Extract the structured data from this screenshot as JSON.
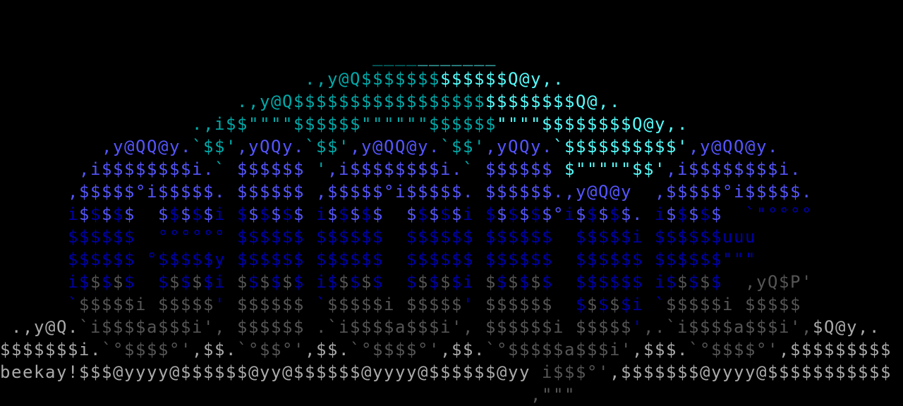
{
  "palette": {
    "c": "#00aaaa",
    "C": "#55ffff",
    "B": "#5555ff",
    "b": "#0000aa",
    "g": "#555555",
    "G": "#aaaaaa",
    "W": "#ffffff"
  },
  "signature": "beekay!",
  "rows": [
    {
      "text": "",
      "mask": ""
    },
    {
      "text": "",
      "mask": ""
    },
    {
      "text": "                                 ___________",
      "mask": "                                 ccccCCCCCCC"
    },
    {
      "text": "                           .,y@Q$$$$$$$$$$$$$Q@y,.",
      "mask": "                           ccccccccccccCCCCCCCCCCC"
    },
    {
      "text": "                     .,y@Q$$$$$$$$$$$$$$$$$$$$$$$$$Q@,.",
      "mask": "                     ccccccccccccccccccccccCCCCCCCCCCCC"
    },
    {
      "text": "                 .,i$$\"\"\"\"$$$$$$\"\"\"\"\"\"$$$$$$\"\"\"\"$$$$$$$$Q@y,.",
      "mask": "                 cccccccccccccccccccccccccccCCCCCCCCCCCCCCCCC"
    },
    {
      "text": "         ,y@QQ@y.`$$',yQQy.`$$',y@QQ@y.`$$',yQQy.`$$$$$$$$$$',y@QQ@y.",
      "mask": "         BBBBBBBBccccBBBBBBccccBBBBBBBBccccBBBBBBCCCCCCCCCCCCBBBBBBBB"
    },
    {
      "text": "       ,i$$$$$$$$i.` $$$$$$ ',i$$$$$$$$i.` $$$$$$ $\"\"\"\"\"$$',i$$$$$$$$i.",
      "mask": "       BBBBBBBBBBBBc BBBBBB cBBBBBBBBBBBBc BBBBBB CCCCCCCCCBBBBBBBBBBBB"
    },
    {
      "text": "      ,$$$$$°i$$$$$. $$$$$$ ,$$$$$°i$$$$$. $$$$$$.,y@Q@y  ,$$$$$°i$$$$$.",
      "mask": "      BBBBBBBBBBBBBB BBBBBB BBBBBBBBBBBBBB BBBBBBBBBBBBB  BBBBBBBBBBBBBB"
    },
    {
      "text": "      i$$$$$  $$$$$i $$$$$$ i$$$$$  $$$$$i $$$$$$°i$$$$$. i$$$$$  `\"°°°°",
      "mask": "      bBbBbB  BbBbBb bBbBbB bBbBbB  BbBbBb bBbBbBBbBbBbBB bBbBbB  bbbbbb"
    },
    {
      "text": "      $$$$$$  °°°°°° $$$$$$ $$$$$$  $$$$$$ $$$$$$  $$$$$i $$$$$$uuu",
      "mask": "      bbbbbb  bbbbbb bbbbbb bbbbbb  bbbbbb bbbbbb  bbbbbb bbbbbbbbb"
    },
    {
      "text": "      $$$$$$ °$$$$$y $$$$$$ $$$$$$  $$$$$$ $$$$$$  $$$$$$ $$$$$$\"\"\"",
      "mask": "      bbbbbb bbbbbbb bbbbbb bbbbbb  bbbbbb bbbbbb  bbbbbb bbbbbbbbb"
    },
    {
      "text": "      i$$$$$  $$$$$i $$$$$$ i$$$$$  $$$$$i $$$$$$  $$$$$$ i$$$$$  ,yQ$P'",
      "mask": "      bbgbgb  bgbgbb gbgbgb bbgbgb  bgbgbb gbgbgb  bbbbbb bbgbgb  gggggg"
    },
    {
      "text": "      `$$$$$i $$$$$' $$$$$$ `$$$$$i $$$$$' $$$$$$  $$$$$i `$$$$$i $$$$$",
      "mask": "      bgggggg gggggb gggggg bgggggg gggggb gggggg  bgbgbb bgggggg ggggg"
    },
    {
      "text": " .,y@Q.`i$$$$a$$$i', $$$$$$ .`i$$$$a$$$i', $$$$$$i $$$$$',.`i$$$$a$$$i',$Q@y,.",
      "mask": " GGGGGGggggggggggggg gggggg gggggggggggggg ggggggg gggggbgggggggggggggggGGGGGG"
    },
    {
      "text": "$$$$$$$i.`°$$$$°',$$.`°$$°',$$.`°$$$$°',$$.`°$$$$$a$$$i',$$$.`°$$$$°',$$$$$$$$$",
      "mask": "GGGGGGGGGggggggggGGGGggggggGGGGggggggggGGGGgggggggggggggGGGGGggggggggGGGGGGGGGG"
    },
    {
      "text": "beekay!$$$@yyyy@$$$$$$@yy@$$$$$$@yyyy@$$$$$$@yy i$$$°',$$$$$$$@yyyy@$$$$$$$$$$$",
      "mask": "GGGGGGGGGGGGGGGGGGGGGGGGGGGGGGGGGGGGGGGGGGGGGGG ggggggGGGGGGGGGGGGGGGGGGGGGGGGG"
    },
    {
      "text": "                                               ,\"\"\"",
      "mask": "                                               gggg"
    }
  ]
}
